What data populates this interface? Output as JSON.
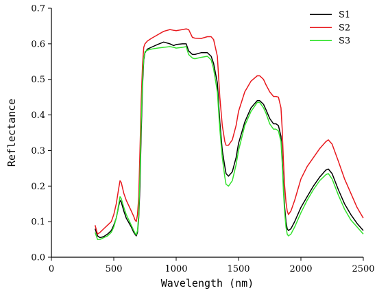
{
  "chart_data": {
    "type": "line",
    "xlabel": "Wavelength (nm)",
    "ylabel": "Reflectance",
    "xlim": [
      0,
      2500
    ],
    "ylim": [
      0,
      0.7
    ],
    "xticks": [
      0,
      500,
      1000,
      1500,
      2000,
      2500
    ],
    "yticks": [
      0.0,
      0.1,
      0.2,
      0.3,
      0.4,
      0.5,
      0.6,
      0.7
    ],
    "x_tick_labels": [
      "0",
      "500",
      "1000",
      "1500",
      "2000",
      "2500"
    ],
    "y_tick_labels": [
      "0.0",
      "0.1",
      "0.2",
      "0.3",
      "0.4",
      "0.5",
      "0.6",
      "0.7"
    ],
    "grid": false,
    "legend_position": "top-right",
    "series": [
      {
        "name": "S1",
        "color": "#000000",
        "x": [
          350,
          370,
          390,
          420,
          450,
          480,
          500,
          520,
          540,
          550,
          560,
          580,
          600,
          640,
          660,
          670,
          680,
          690,
          700,
          710,
          720,
          730,
          740,
          750,
          770,
          800,
          850,
          900,
          950,
          980,
          1000,
          1050,
          1080,
          1100,
          1130,
          1150,
          1200,
          1250,
          1280,
          1300,
          1330,
          1350,
          1370,
          1390,
          1400,
          1420,
          1450,
          1480,
          1500,
          1550,
          1600,
          1650,
          1670,
          1700,
          1720,
          1750,
          1780,
          1800,
          1820,
          1840,
          1850,
          1860,
          1870,
          1880,
          1890,
          1900,
          1920,
          1950,
          2000,
          2050,
          2100,
          2150,
          2200,
          2220,
          2250,
          2300,
          2350,
          2400,
          2450,
          2500
        ],
        "y": [
          0.08,
          0.06,
          0.055,
          0.058,
          0.065,
          0.075,
          0.09,
          0.11,
          0.145,
          0.16,
          0.155,
          0.13,
          0.11,
          0.085,
          0.07,
          0.065,
          0.06,
          0.07,
          0.11,
          0.2,
          0.35,
          0.48,
          0.555,
          0.575,
          0.585,
          0.59,
          0.598,
          0.605,
          0.6,
          0.595,
          0.598,
          0.6,
          0.6,
          0.58,
          0.57,
          0.57,
          0.575,
          0.575,
          0.565,
          0.545,
          0.49,
          0.38,
          0.3,
          0.255,
          0.235,
          0.228,
          0.24,
          0.28,
          0.32,
          0.38,
          0.42,
          0.44,
          0.44,
          0.43,
          0.415,
          0.39,
          0.375,
          0.375,
          0.37,
          0.34,
          0.28,
          0.2,
          0.14,
          0.1,
          0.08,
          0.075,
          0.08,
          0.1,
          0.14,
          0.17,
          0.2,
          0.225,
          0.245,
          0.248,
          0.235,
          0.19,
          0.15,
          0.12,
          0.095,
          0.075
        ]
      },
      {
        "name": "S2",
        "color": "#e8191e",
        "x": [
          350,
          370,
          390,
          420,
          450,
          480,
          500,
          520,
          540,
          550,
          560,
          580,
          600,
          640,
          660,
          670,
          680,
          690,
          700,
          710,
          720,
          730,
          740,
          750,
          770,
          800,
          850,
          900,
          950,
          980,
          1000,
          1050,
          1080,
          1100,
          1130,
          1150,
          1200,
          1250,
          1280,
          1300,
          1330,
          1350,
          1370,
          1390,
          1400,
          1420,
          1450,
          1480,
          1500,
          1550,
          1600,
          1650,
          1670,
          1700,
          1720,
          1750,
          1780,
          1800,
          1820,
          1840,
          1850,
          1860,
          1870,
          1880,
          1890,
          1900,
          1920,
          1950,
          2000,
          2050,
          2100,
          2150,
          2200,
          2220,
          2250,
          2300,
          2350,
          2400,
          2450,
          2500
        ],
        "y": [
          0.09,
          0.065,
          0.07,
          0.08,
          0.09,
          0.1,
          0.12,
          0.15,
          0.195,
          0.215,
          0.21,
          0.18,
          0.16,
          0.13,
          0.115,
          0.105,
          0.1,
          0.12,
          0.17,
          0.3,
          0.44,
          0.54,
          0.59,
          0.6,
          0.608,
          0.615,
          0.625,
          0.635,
          0.64,
          0.638,
          0.637,
          0.64,
          0.642,
          0.64,
          0.618,
          0.616,
          0.615,
          0.62,
          0.62,
          0.612,
          0.565,
          0.45,
          0.37,
          0.325,
          0.315,
          0.315,
          0.33,
          0.37,
          0.41,
          0.465,
          0.495,
          0.51,
          0.51,
          0.5,
          0.485,
          0.465,
          0.452,
          0.452,
          0.45,
          0.42,
          0.36,
          0.27,
          0.2,
          0.155,
          0.13,
          0.12,
          0.13,
          0.16,
          0.22,
          0.255,
          0.28,
          0.305,
          0.325,
          0.33,
          0.318,
          0.27,
          0.22,
          0.18,
          0.14,
          0.11
        ]
      },
      {
        "name": "S3",
        "color": "#33e22d",
        "x": [
          350,
          370,
          390,
          420,
          450,
          480,
          500,
          520,
          540,
          550,
          560,
          580,
          600,
          640,
          660,
          670,
          680,
          690,
          700,
          710,
          720,
          730,
          740,
          750,
          770,
          800,
          850,
          900,
          950,
          980,
          1000,
          1050,
          1080,
          1100,
          1130,
          1150,
          1200,
          1250,
          1280,
          1300,
          1330,
          1350,
          1370,
          1390,
          1400,
          1420,
          1450,
          1480,
          1500,
          1550,
          1600,
          1650,
          1670,
          1700,
          1720,
          1750,
          1780,
          1800,
          1820,
          1840,
          1850,
          1860,
          1870,
          1880,
          1890,
          1900,
          1920,
          1950,
          2000,
          2050,
          2100,
          2150,
          2200,
          2220,
          2250,
          2300,
          2350,
          2400,
          2450,
          2500
        ],
        "y": [
          0.07,
          0.05,
          0.05,
          0.055,
          0.06,
          0.07,
          0.085,
          0.11,
          0.15,
          0.17,
          0.165,
          0.14,
          0.12,
          0.09,
          0.075,
          0.068,
          0.063,
          0.075,
          0.12,
          0.23,
          0.38,
          0.5,
          0.56,
          0.578,
          0.582,
          0.585,
          0.588,
          0.59,
          0.592,
          0.59,
          0.588,
          0.59,
          0.592,
          0.57,
          0.56,
          0.558,
          0.562,
          0.565,
          0.555,
          0.53,
          0.465,
          0.36,
          0.28,
          0.225,
          0.205,
          0.2,
          0.215,
          0.26,
          0.3,
          0.37,
          0.41,
          0.435,
          0.435,
          0.42,
          0.405,
          0.375,
          0.36,
          0.36,
          0.355,
          0.325,
          0.265,
          0.185,
          0.125,
          0.085,
          0.065,
          0.06,
          0.065,
          0.085,
          0.125,
          0.16,
          0.19,
          0.215,
          0.232,
          0.235,
          0.22,
          0.175,
          0.135,
          0.105,
          0.085,
          0.065
        ]
      }
    ]
  }
}
